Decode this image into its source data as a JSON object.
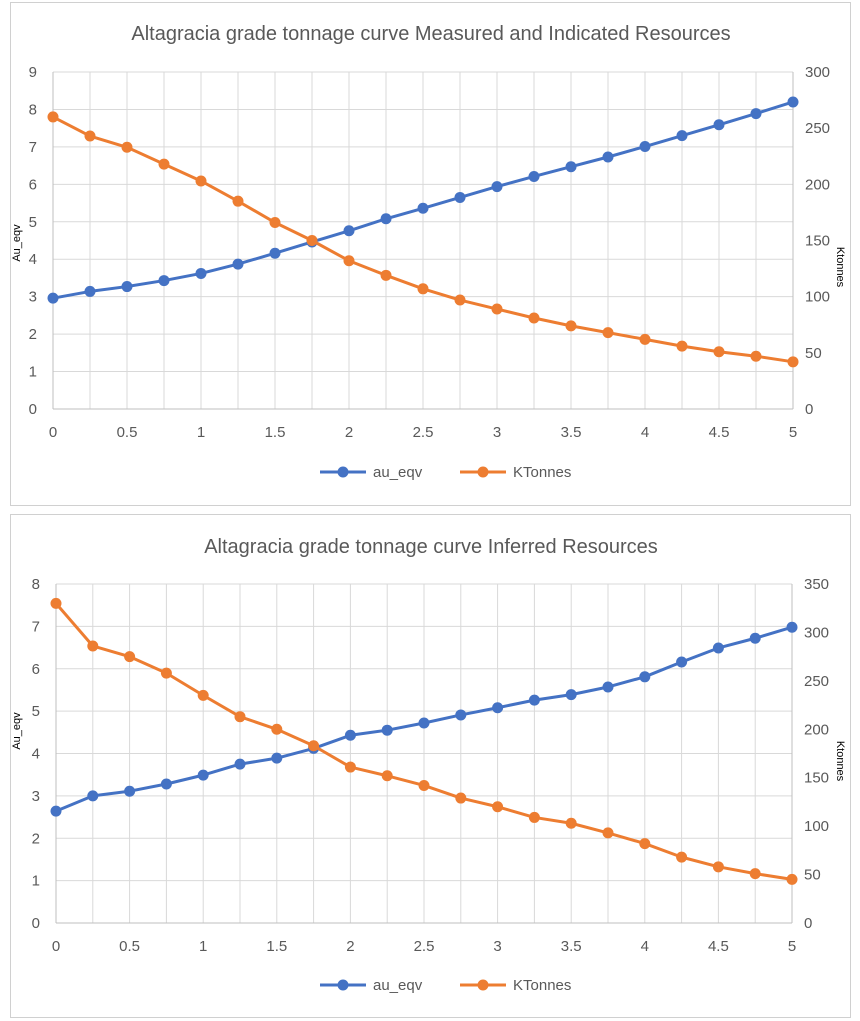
{
  "chart_data": [
    {
      "type": "line",
      "title": "Altagracia grade tonnage curve Measured and Indicated Resources",
      "xlabel": "",
      "ylabel": "Au_eqv",
      "y2label": "Ktonnes",
      "x": [
        0,
        0.25,
        0.5,
        0.75,
        1,
        1.25,
        1.5,
        1.75,
        2,
        2.25,
        2.5,
        2.75,
        3,
        3.25,
        3.5,
        3.75,
        4,
        4.25,
        4.5,
        4.75,
        5
      ],
      "x_ticks": [
        0,
        0.5,
        1,
        1.5,
        2,
        2.5,
        3,
        3.5,
        4,
        4.5,
        5
      ],
      "xlim": [
        0,
        5
      ],
      "ylim": [
        0,
        9
      ],
      "y_ticks": [
        0,
        1,
        2,
        3,
        4,
        5,
        6,
        7,
        8,
        9
      ],
      "y2lim": [
        0,
        300
      ],
      "y2_ticks": [
        0,
        50,
        100,
        150,
        200,
        250,
        300
      ],
      "grid": true,
      "legend_position": "bottom",
      "series": [
        {
          "name": "au_eqv",
          "axis": "left",
          "color": "#4472c4",
          "values": [
            2.96,
            3.14,
            3.27,
            3.43,
            3.62,
            3.87,
            4.16,
            4.46,
            4.76,
            5.08,
            5.36,
            5.65,
            5.94,
            6.21,
            6.47,
            6.73,
            7.01,
            7.3,
            7.59,
            7.89,
            8.2
          ]
        },
        {
          "name": "KTonnes",
          "axis": "right",
          "color": "#ed7d31",
          "values": [
            260,
            243,
            233,
            218,
            203,
            185,
            166,
            150,
            132,
            119,
            107,
            97,
            89,
            81,
            74,
            68,
            62,
            56,
            51,
            47,
            42
          ]
        }
      ]
    },
    {
      "type": "line",
      "title": "Altagracia grade tonnage curve Inferred Resources",
      "xlabel": "",
      "ylabel": "Au_eqv",
      "y2label": "Ktonnes",
      "x": [
        0,
        0.25,
        0.5,
        0.75,
        1,
        1.25,
        1.5,
        1.75,
        2,
        2.25,
        2.5,
        2.75,
        3,
        3.25,
        3.5,
        3.75,
        4,
        4.25,
        4.5,
        4.75,
        5
      ],
      "x_ticks": [
        0,
        0.5,
        1,
        1.5,
        2,
        2.5,
        3,
        3.5,
        4,
        4.5,
        5
      ],
      "xlim": [
        0,
        5
      ],
      "ylim": [
        0,
        8
      ],
      "y_ticks": [
        0,
        1,
        2,
        3,
        4,
        5,
        6,
        7,
        8
      ],
      "y2lim": [
        0,
        350
      ],
      "y2_ticks": [
        0,
        50,
        100,
        150,
        200,
        250,
        300,
        350
      ],
      "grid": true,
      "legend_position": "bottom",
      "series": [
        {
          "name": "au_eqv",
          "axis": "left",
          "color": "#4472c4",
          "values": [
            2.64,
            3.0,
            3.11,
            3.28,
            3.49,
            3.75,
            3.89,
            4.12,
            4.43,
            4.55,
            4.72,
            4.91,
            5.08,
            5.26,
            5.39,
            5.57,
            5.81,
            6.16,
            6.49,
            6.72,
            6.98
          ]
        },
        {
          "name": "KTonnes",
          "axis": "right",
          "color": "#ed7d31",
          "values": [
            330,
            286,
            275,
            258,
            235,
            213,
            200,
            183,
            161,
            152,
            142,
            129,
            120,
            109,
            103,
            93,
            82,
            68,
            58,
            51,
            45
          ]
        }
      ]
    }
  ]
}
